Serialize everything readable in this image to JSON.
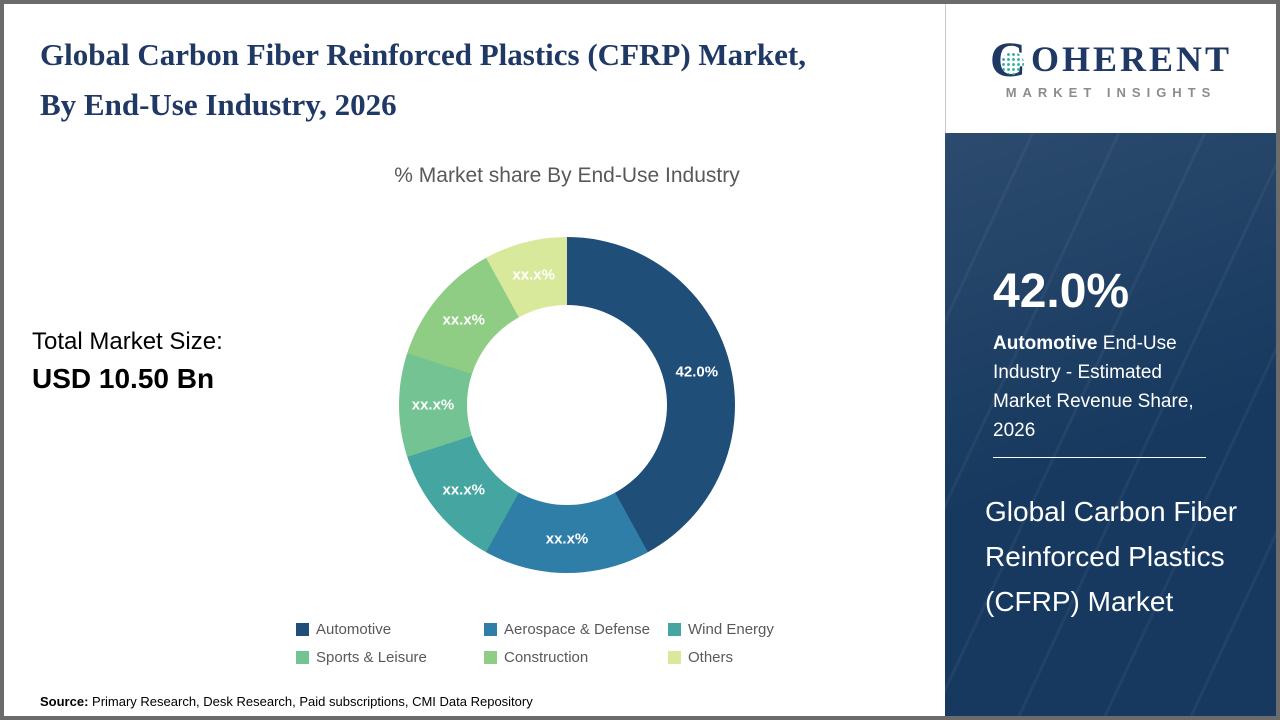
{
  "header": {
    "title": "Global Carbon Fiber Reinforced Plastics (CFRP) Market, By End-Use Industry, 2026"
  },
  "total_market": {
    "label": "Total Market Size:",
    "value": "USD 10.50 Bn"
  },
  "chart_data": {
    "type": "pie",
    "subtype": "donut",
    "title": "% Market share By End-Use Industry",
    "start_angle_deg": 0,
    "direction": "clockwise",
    "legend_position": "bottom",
    "series": [
      {
        "name": "Automotive",
        "value": 42.0,
        "display_label": "42.0%",
        "color": "#1F4E79"
      },
      {
        "name": "Aerospace & Defense",
        "value": 16.0,
        "display_label": "xx.x%",
        "color": "#2E7EA8"
      },
      {
        "name": "Wind Energy",
        "value": 12.0,
        "display_label": "xx.x%",
        "color": "#45A5A1"
      },
      {
        "name": "Sports & Leisure",
        "value": 10.0,
        "display_label": "xx.x%",
        "color": "#74C392"
      },
      {
        "name": "Construction",
        "value": 12.0,
        "display_label": "xx.x%",
        "color": "#8FCD85"
      },
      {
        "name": "Others",
        "value": 8.0,
        "display_label": "xx.x%",
        "color": "#D9E99C"
      }
    ]
  },
  "sidebar": {
    "stat_value": "42.0%",
    "stat_description_bold": "Automotive",
    "stat_description_rest": " End-Use Industry - Estimated Market Revenue Share, 2026",
    "panel_title": "Global Carbon Fiber Reinforced Plastics (CFRP) Market",
    "background_color": "#17395F"
  },
  "logo": {
    "brand_initial": "C",
    "brand_rest": "OHERENT",
    "tagline": "MARKET INSIGHTS"
  },
  "footer": {
    "source_label": "Source:",
    "source_text": " Primary Research, Desk Research, Paid subscriptions, CMI Data Repository"
  }
}
